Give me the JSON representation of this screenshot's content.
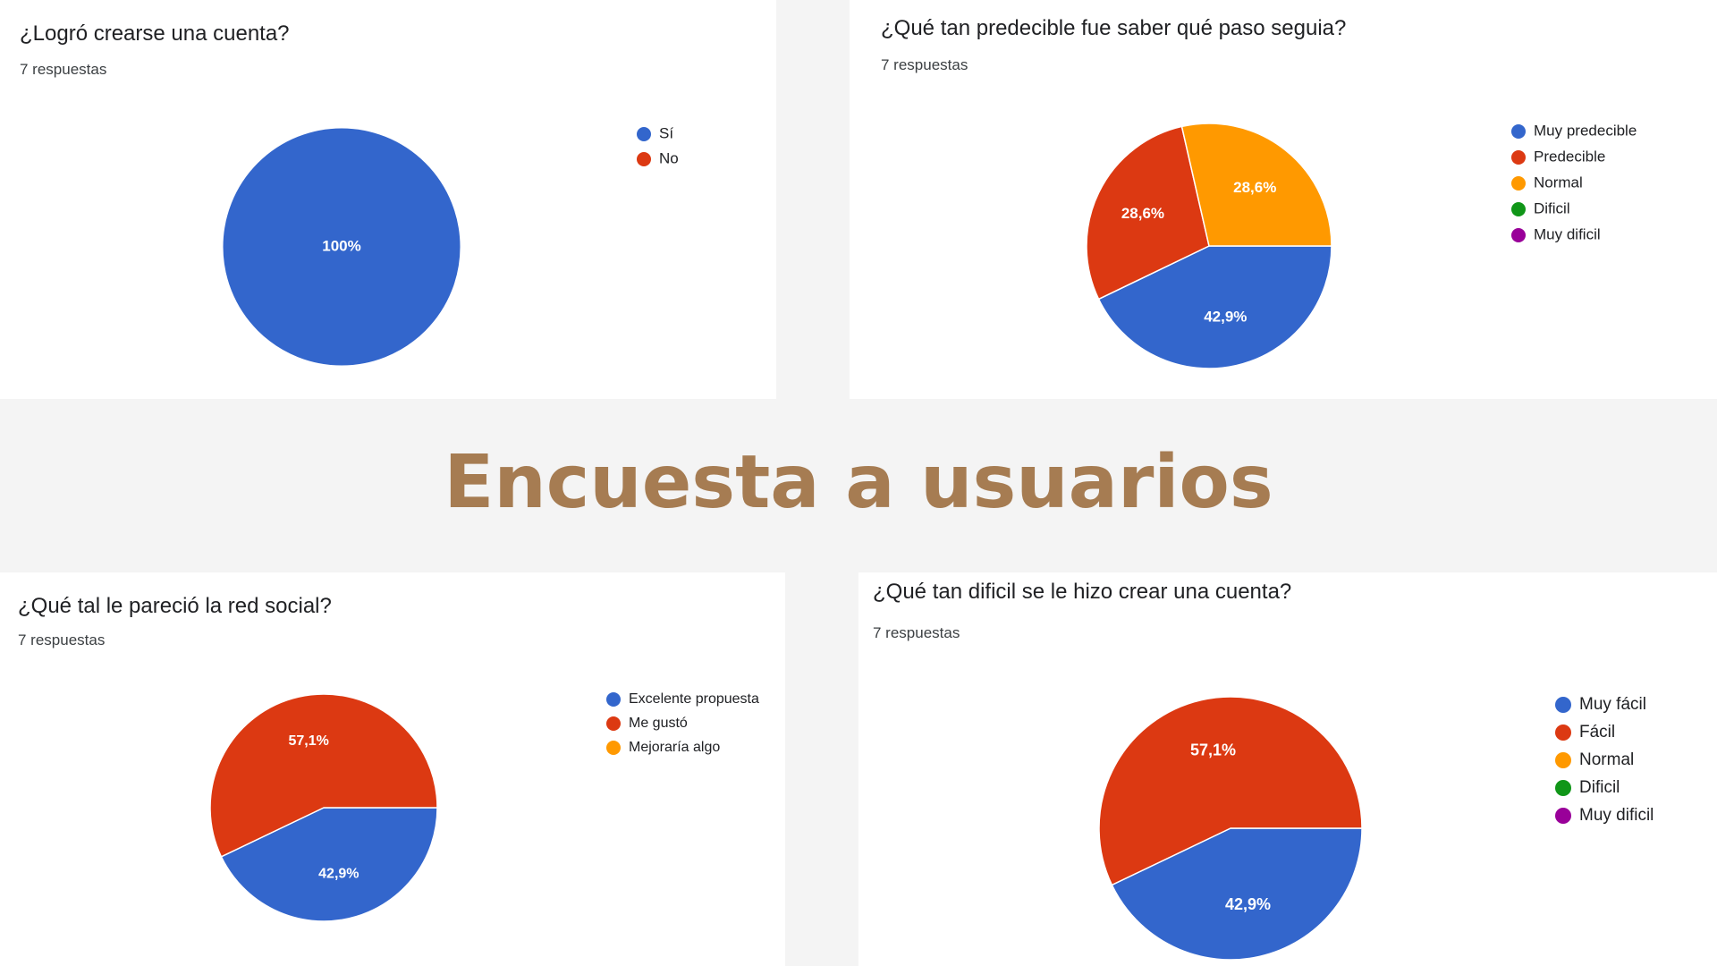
{
  "page": {
    "title": "Encuesta a usuarios",
    "title_color": "#a67c52"
  },
  "chart_data": [
    {
      "type": "pie",
      "title": "¿Logró crearse una cuenta?",
      "subtitle": "7 respuestas",
      "legend_position": "right",
      "labels": [
        "Sí",
        "No"
      ],
      "values": [
        100,
        0
      ],
      "value_labels": [
        "100%",
        ""
      ],
      "colors": [
        "#3366cc",
        "#dc3912"
      ]
    },
    {
      "type": "pie",
      "title": "¿Qué tan predecible fue saber qué paso seguia?",
      "subtitle": "7 respuestas",
      "legend_position": "right",
      "labels": [
        "Muy predecible",
        "Predecible",
        "Normal",
        "Dificil",
        "Muy dificil"
      ],
      "values": [
        42.9,
        28.6,
        28.6,
        0,
        0
      ],
      "value_labels": [
        "42,9%",
        "28,6%",
        "28,6%",
        "",
        ""
      ],
      "colors": [
        "#3366cc",
        "#dc3912",
        "#ff9900",
        "#109618",
        "#990099"
      ]
    },
    {
      "type": "pie",
      "title": "¿Qué tal le pareció la red social?",
      "subtitle": "7 respuestas",
      "legend_position": "right",
      "labels": [
        "Excelente propuesta",
        "Me gustó",
        "Mejoraría algo"
      ],
      "values": [
        42.9,
        57.1,
        0
      ],
      "value_labels": [
        "42,9%",
        "57,1%",
        ""
      ],
      "colors": [
        "#3366cc",
        "#dc3912",
        "#ff9900"
      ]
    },
    {
      "type": "pie",
      "title": "¿Qué tan dificil se le hizo crear una cuenta?",
      "subtitle": "7 respuestas",
      "legend_position": "right",
      "labels": [
        "Muy fácil",
        "Fácil",
        "Normal",
        "Dificil",
        "Muy dificil"
      ],
      "values": [
        42.9,
        57.1,
        0,
        0,
        0
      ],
      "value_labels": [
        "42,9%",
        "57,1%",
        "",
        "",
        ""
      ],
      "colors": [
        "#3366cc",
        "#dc3912",
        "#ff9900",
        "#109618",
        "#990099"
      ]
    }
  ]
}
